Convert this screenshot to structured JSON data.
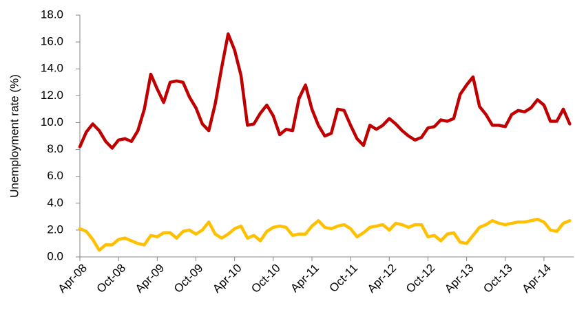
{
  "chart_data": {
    "type": "line",
    "y_label": "Unemployment rate (%)",
    "categories": [
      "Apr-08",
      null,
      null,
      null,
      null,
      null,
      "Oct-08",
      null,
      null,
      null,
      null,
      null,
      "Apr-09",
      null,
      null,
      null,
      null,
      null,
      "Oct-09",
      null,
      null,
      null,
      null,
      null,
      "Apr-10",
      null,
      null,
      null,
      null,
      null,
      "Oct-10",
      null,
      null,
      null,
      null,
      null,
      "Apr-11",
      null,
      null,
      null,
      null,
      null,
      "Oct-11",
      null,
      null,
      null,
      null,
      null,
      "Apr-12",
      null,
      null,
      null,
      null,
      null,
      "Oct-12",
      null,
      null,
      null,
      null,
      null,
      "Apr-13",
      null,
      null,
      null,
      null,
      null,
      "Oct-13",
      null,
      null,
      null,
      null,
      null,
      "Apr-14",
      null,
      null,
      null,
      null
    ],
    "series": [
      {
        "color": "#c00000",
        "values": [
          8.2,
          9.3,
          9.9,
          9.4,
          8.6,
          8.1,
          8.7,
          8.8,
          8.6,
          9.4,
          11.0,
          13.6,
          12.5,
          11.5,
          13.0,
          13.1,
          13.0,
          11.9,
          11.1,
          9.9,
          9.4,
          11.4,
          14.1,
          16.6,
          15.4,
          13.5,
          9.8,
          9.9,
          10.7,
          11.3,
          10.5,
          9.1,
          9.5,
          9.4,
          11.8,
          12.8,
          11.0,
          9.8,
          9.0,
          9.2,
          11.0,
          10.9,
          9.8,
          8.8,
          8.3,
          9.8,
          9.5,
          9.8,
          10.3,
          9.9,
          9.4,
          9.0,
          8.7,
          8.9,
          9.6,
          9.7,
          10.2,
          10.1,
          10.3,
          12.1,
          12.8,
          13.4,
          11.2,
          10.6,
          9.8,
          9.8,
          9.7,
          10.6,
          10.9,
          10.8,
          11.1,
          11.7,
          11.3,
          10.1,
          10.1,
          11.0,
          9.9
        ]
      },
      {
        "color": "#ffc000",
        "values": [
          2.1,
          1.9,
          1.3,
          0.5,
          0.9,
          0.9,
          1.3,
          1.4,
          1.2,
          1.0,
          0.9,
          1.6,
          1.5,
          1.8,
          1.8,
          1.4,
          1.9,
          2.0,
          1.7,
          2.0,
          2.6,
          1.7,
          1.4,
          1.7,
          2.1,
          2.3,
          1.4,
          1.6,
          1.2,
          1.9,
          2.2,
          2.3,
          2.2,
          1.6,
          1.7,
          1.7,
          2.3,
          2.7,
          2.2,
          2.1,
          2.3,
          2.4,
          2.1,
          1.5,
          1.8,
          2.2,
          2.3,
          2.4,
          2.0,
          2.5,
          2.4,
          2.2,
          2.4,
          2.4,
          1.5,
          1.6,
          1.2,
          1.7,
          1.8,
          1.1,
          1.0,
          1.6,
          2.2,
          2.4,
          2.7,
          2.5,
          2.4,
          2.5,
          2.6,
          2.6,
          2.7,
          2.8,
          2.6,
          2.0,
          1.9,
          2.5,
          2.7
        ]
      }
    ],
    "ylim": [
      0,
      18
    ],
    "yticks": [
      {
        "value": 0,
        "label": "0.0"
      },
      {
        "value": 2,
        "label": "2.0"
      },
      {
        "value": 4,
        "label": "4.0"
      },
      {
        "value": 6,
        "label": "6.0"
      },
      {
        "value": 8,
        "label": "8.0"
      },
      {
        "value": 10,
        "label": "10.0"
      },
      {
        "value": 12,
        "label": "12.0"
      },
      {
        "value": 14,
        "label": "14.0"
      },
      {
        "value": 16,
        "label": "16.0"
      },
      {
        "value": 18,
        "label": "18.0"
      }
    ],
    "grid": false
  }
}
